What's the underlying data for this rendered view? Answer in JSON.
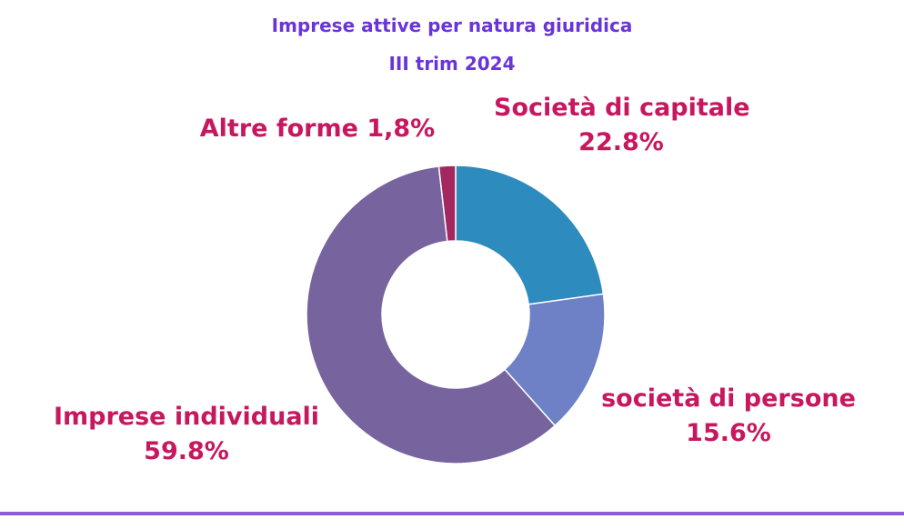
{
  "chart_data": {
    "type": "pie",
    "title": "Imprese attive per natura giuridica",
    "subtitle": "III trim 2024",
    "slices": [
      {
        "label": "Società di capitale",
        "value": 22.8,
        "display": "22.8%",
        "color": "#2e8bbd"
      },
      {
        "label": "società di persone",
        "value": 15.6,
        "display": "15.6%",
        "color": "#6e80c6"
      },
      {
        "label": "Imprese individuali",
        "value": 59.8,
        "display": "59.8%",
        "color": "#77639d"
      },
      {
        "label": "Altre forme",
        "value": 1.8,
        "display": "1,8%",
        "color": "#a3285f"
      }
    ],
    "donut": true,
    "legend": "none"
  },
  "labels": {
    "altre": "Altre forme 1,8%"
  },
  "colors": {
    "title": "#6a35d8",
    "label": "#c7175f",
    "rule": "#8e5bd6"
  }
}
